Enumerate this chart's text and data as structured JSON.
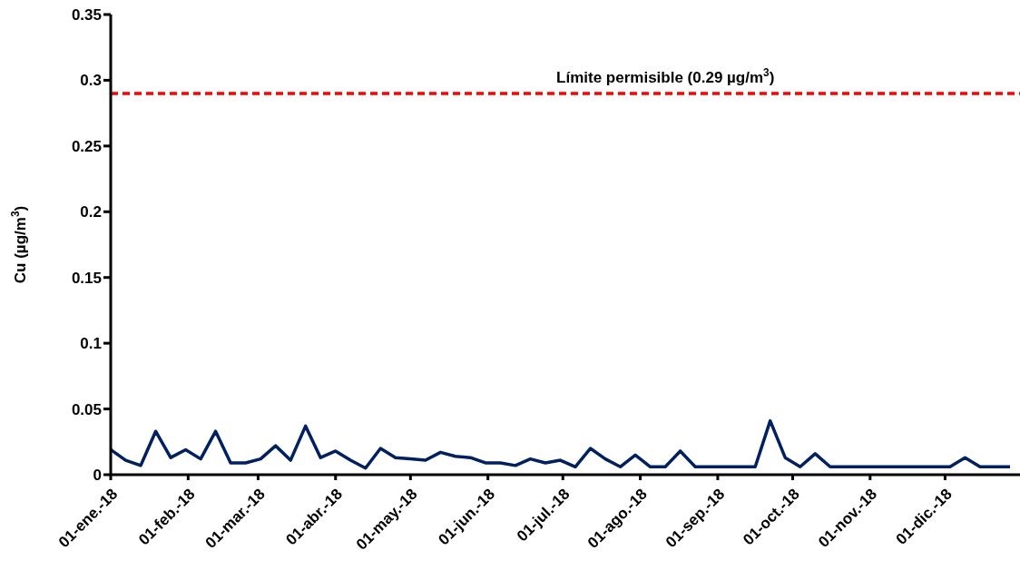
{
  "chart_data": {
    "type": "line",
    "ylabel": "Cu (µg/m$^{3}$)",
    "x": [
      "2018-01-01",
      "2018-01-07",
      "2018-01-13",
      "2018-01-19",
      "2018-01-25",
      "2018-01-31",
      "2018-02-06",
      "2018-02-12",
      "2018-02-18",
      "2018-02-24",
      "2018-03-02",
      "2018-03-08",
      "2018-03-14",
      "2018-03-20",
      "2018-03-26",
      "2018-04-01",
      "2018-04-07",
      "2018-04-13",
      "2018-04-19",
      "2018-04-25",
      "2018-05-01",
      "2018-05-07",
      "2018-05-13",
      "2018-05-19",
      "2018-05-25",
      "2018-05-31",
      "2018-06-06",
      "2018-06-12",
      "2018-06-18",
      "2018-06-24",
      "2018-06-30",
      "2018-07-06",
      "2018-07-12",
      "2018-07-18",
      "2018-07-24",
      "2018-07-30",
      "2018-08-05",
      "2018-08-11",
      "2018-08-17",
      "2018-08-23",
      "2018-08-29",
      "2018-09-04",
      "2018-09-10",
      "2018-09-16",
      "2018-09-22",
      "2018-09-28",
      "2018-10-04",
      "2018-10-10",
      "2018-10-16",
      "2018-10-22",
      "2018-10-28",
      "2018-11-03",
      "2018-11-09",
      "2018-11-15",
      "2018-11-21",
      "2018-11-27",
      "2018-12-03",
      "2018-12-09",
      "2018-12-15",
      "2018-12-21",
      "2018-12-27"
    ],
    "series": [
      {
        "color": "#002060",
        "values": [
          0.019,
          0.011,
          0.007,
          0.033,
          0.013,
          0.019,
          0.012,
          0.033,
          0.009,
          0.009,
          0.012,
          0.022,
          0.011,
          0.037,
          0.013,
          0.018,
          0.011,
          0.005,
          0.02,
          0.013,
          0.012,
          0.011,
          0.017,
          0.014,
          0.013,
          0.009,
          0.009,
          0.007,
          0.012,
          0.009,
          0.011,
          0.006,
          0.02,
          0.012,
          0.006,
          0.015,
          0.006,
          0.006,
          0.018,
          0.006,
          0.006,
          0.006,
          0.006,
          0.006,
          0.041,
          0.013,
          0.006,
          0.016,
          0.006,
          0.006,
          0.006,
          0.006,
          0.006,
          0.006,
          0.006,
          0.006,
          0.006,
          0.013,
          0.006,
          0.006,
          0.006
        ]
      }
    ],
    "xlim": [
      "2018-01-01",
      "2018-12-31"
    ],
    "xticks": [
      {
        "value": "2018-01-01",
        "label": "01-ene.-18"
      },
      {
        "value": "2018-02-01",
        "label": "01-feb.-18"
      },
      {
        "value": "2018-03-01",
        "label": "01-mar.-18"
      },
      {
        "value": "2018-04-01",
        "label": "01-abr.-18"
      },
      {
        "value": "2018-05-01",
        "label": "01-may.-18"
      },
      {
        "value": "2018-06-01",
        "label": "01-jun.-18"
      },
      {
        "value": "2018-07-01",
        "label": "01-jul.-18"
      },
      {
        "value": "2018-08-01",
        "label": "01-ago.-18"
      },
      {
        "value": "2018-09-01",
        "label": "01-sep.-18"
      },
      {
        "value": "2018-10-01",
        "label": "01-oct.-18"
      },
      {
        "value": "2018-11-01",
        "label": "01-nov.-18"
      },
      {
        "value": "2018-12-01",
        "label": "01-dic.-18"
      }
    ],
    "ylim": [
      0,
      0.35
    ],
    "yticks": [
      0,
      0.05,
      0.1,
      0.15,
      0.2,
      0.25,
      0.3,
      0.35
    ],
    "ref_lines": [
      {
        "axis": "y",
        "value": 0.29,
        "label": "Límite permisible (0.29 µg/m$^{3}$)",
        "color": "#ff0000",
        "line_style": "dashed"
      }
    ],
    "grid": false,
    "legend": false,
    "marker": "none",
    "line_style": "solid"
  }
}
